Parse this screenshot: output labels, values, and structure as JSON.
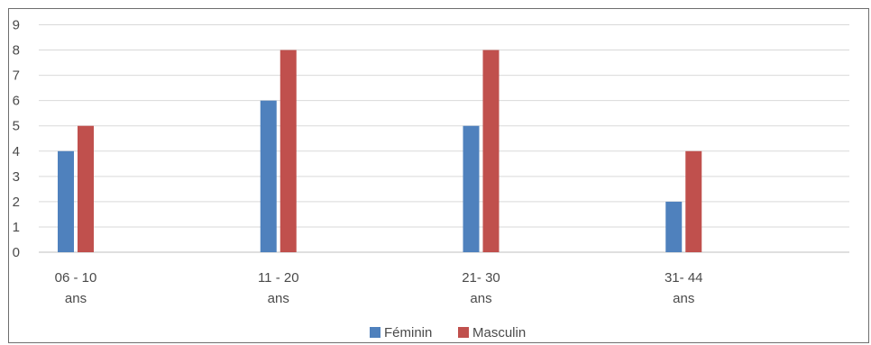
{
  "chart_data": {
    "type": "bar",
    "categories": [
      [
        "06 - 10",
        "ans"
      ],
      [
        "11 - 20",
        "ans"
      ],
      [
        "21- 30",
        "ans"
      ],
      [
        "31- 44",
        "ans"
      ]
    ],
    "series": [
      {
        "name": "Féminin",
        "color": "#4f81bd",
        "values": [
          4,
          6,
          5,
          2
        ]
      },
      {
        "name": "Masculin",
        "color": "#c0504d",
        "values": [
          5,
          8,
          8,
          4
        ]
      }
    ],
    "title": "",
    "xlabel": "",
    "ylabel": "",
    "ylim": [
      0,
      9
    ],
    "yticks": [
      0,
      1,
      2,
      3,
      4,
      5,
      6,
      7,
      8,
      9
    ],
    "grid": true,
    "legend_position": "bottom"
  }
}
